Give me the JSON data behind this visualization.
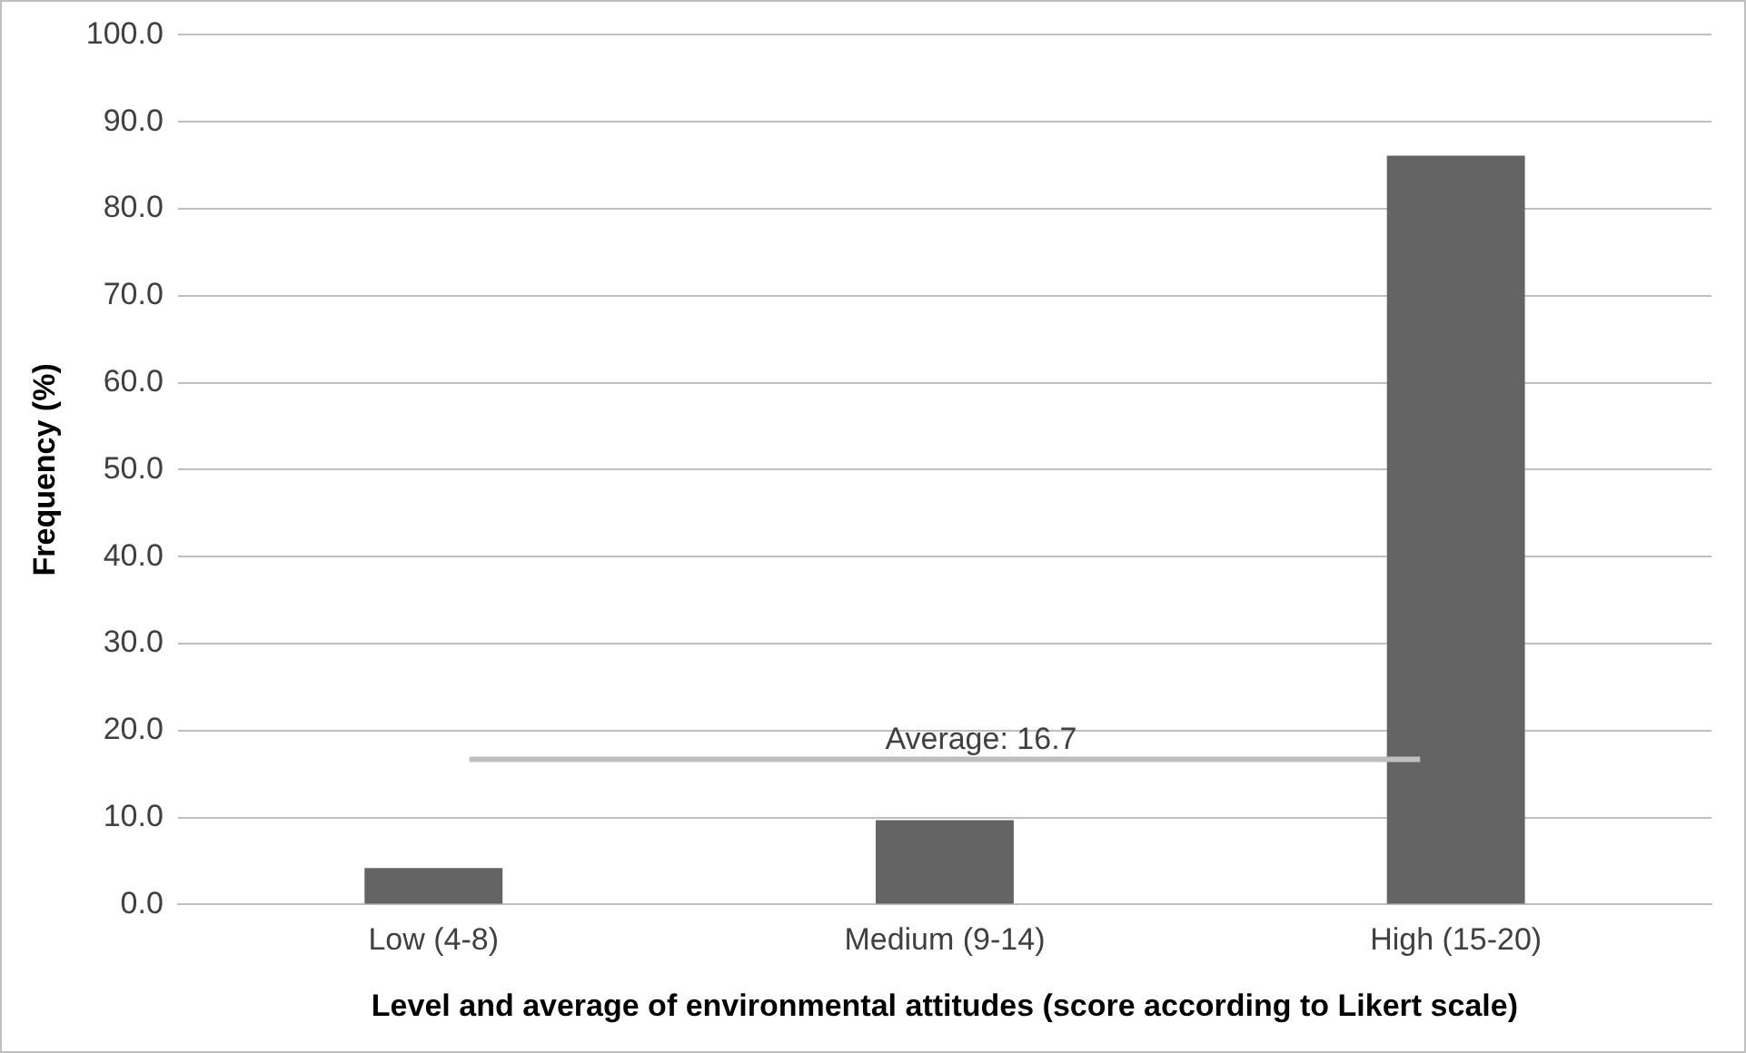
{
  "chart_data": {
    "type": "bar",
    "xlabel": "Level and average of environmental attitudes (score according to Likert scale)",
    "ylabel": "Frequency (%)",
    "categories": [
      "Low (4-8)",
      "Medium (9-14)",
      "High (15-20)"
    ],
    "values": [
      4.2,
      9.7,
      86.1
    ],
    "color": "#646464",
    "ylim": [
      0,
      100
    ],
    "yticks": [
      {
        "value": 0,
        "label": "0.0"
      },
      {
        "value": 10,
        "label": "10.0"
      },
      {
        "value": 20,
        "label": "20.0"
      },
      {
        "value": 30,
        "label": "30.0"
      },
      {
        "value": 40,
        "label": "40.0"
      },
      {
        "value": 50,
        "label": "50.0"
      },
      {
        "value": 60,
        "label": "60.0"
      },
      {
        "value": 70,
        "label": "70.0"
      },
      {
        "value": 80,
        "label": "80.0"
      },
      {
        "value": 90,
        "label": "90.0"
      },
      {
        "value": 100,
        "label": "100.0"
      }
    ],
    "grid": "y",
    "ref_lines": [
      {
        "axis": "y",
        "value": 16.7,
        "label": "Average: 16.7",
        "color": "#bfbfbf"
      }
    ]
  }
}
